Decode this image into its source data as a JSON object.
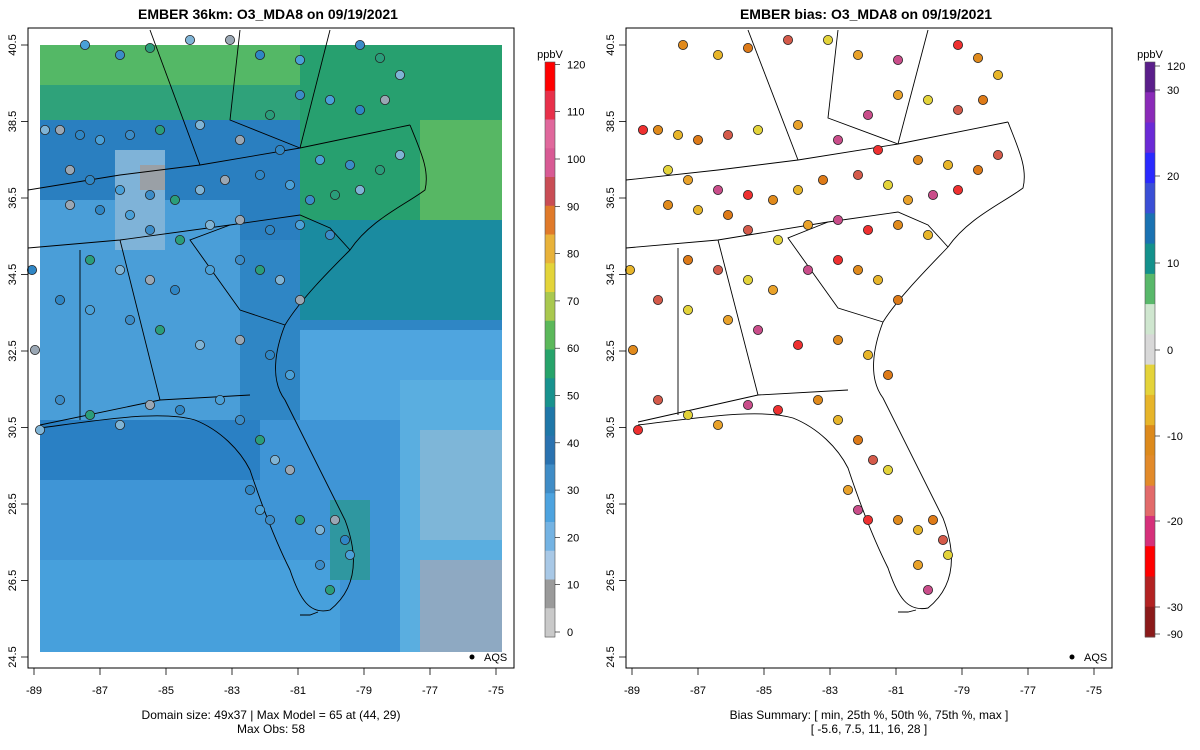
{
  "left_panel": {
    "title": "EMBER 36km: O3_MDA8 on 09/19/2021",
    "legend_unit": "ppbV",
    "legend_ticks": [
      "0",
      "10",
      "20",
      "30",
      "40",
      "50",
      "60",
      "70",
      "80",
      "90",
      "100",
      "110",
      "120"
    ],
    "legend_colors": [
      "#c9c9c9",
      "#9a9a9a",
      "#a8c8e6",
      "#74b3e3",
      "#4da3df",
      "#3f8cc6",
      "#2a72b0",
      "#1f77a8",
      "#18928e",
      "#26a36a",
      "#5bb85a",
      "#a9c84e",
      "#e3d43a",
      "#e8b23a",
      "#e07a2a",
      "#c94d55",
      "#d85a94",
      "#e0689c",
      "#e8304a",
      "#ff0000"
    ],
    "x_ticks": [
      "-89",
      "-87",
      "-85",
      "-83",
      "-81",
      "-79",
      "-77",
      "-75"
    ],
    "y_ticks": [
      "24.5",
      "26.5",
      "28.5",
      "30.5",
      "32.5",
      "34.5",
      "36.5",
      "38.5",
      "40.5"
    ],
    "network_label": "AQS",
    "caption_line1": "Domain size: 49x37 | Max Model = 65 at (44, 29)",
    "caption_line2": "Max Obs: 58"
  },
  "right_panel": {
    "title": "EMBER bias: O3_MDA8 on 09/19/2021",
    "legend_unit": "ppbV",
    "legend_ticks_left": [
      "120",
      "30",
      "20",
      "10",
      "0",
      "-10",
      "-20",
      "-30",
      "-90"
    ],
    "legend_colors": [
      "#8b1a1a",
      "#b22222",
      "#ff0000",
      "#d6307a",
      "#e26a6a",
      "#e28a2a",
      "#dd8a1c",
      "#e7b52a",
      "#e4d33a",
      "#d8d8d8",
      "#cfe6cf",
      "#59b86a",
      "#14918c",
      "#1a72b2",
      "#3a4fd6",
      "#2a2aff",
      "#6a2ad6",
      "#8a2ab8",
      "#5a1e8a"
    ],
    "x_ticks": [
      "-89",
      "-87",
      "-85",
      "-83",
      "-81",
      "-79",
      "-77",
      "-75"
    ],
    "y_ticks": [
      "24.5",
      "26.5",
      "28.5",
      "30.5",
      "32.5",
      "34.5",
      "36.5",
      "38.5",
      "40.5"
    ],
    "network_label": "AQS",
    "caption_line1": "Bias Summary: [ min, 25th %, 50th %, 75th %, max ]",
    "caption_line2": "[ -5.6,   7.5,   11,   16,   28 ]"
  },
  "colors": {
    "ocean_green": "#5cbb5c",
    "land_blue": "#3a8fd0",
    "frame": "#000000"
  }
}
